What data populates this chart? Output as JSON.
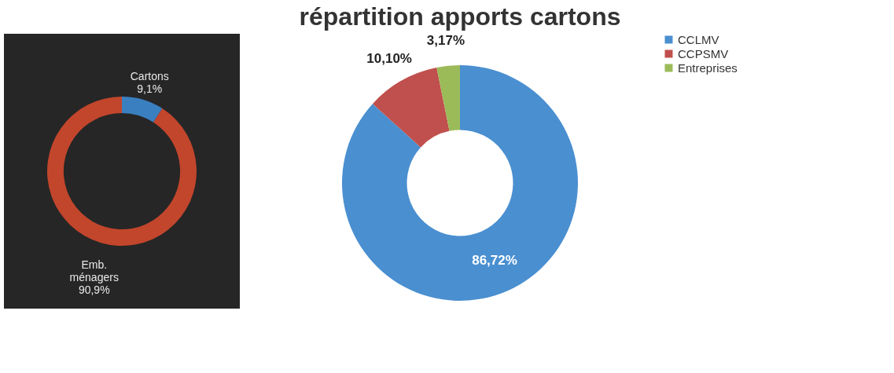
{
  "chart_data": [
    {
      "type": "donut",
      "categories": [
        "Cartons",
        "Emb. ménagers"
      ],
      "values": [
        9.1,
        90.9
      ],
      "colors": [
        "#3a7fc0",
        "#c2462c"
      ],
      "value_labels": [
        "9,1%",
        "90,9%"
      ],
      "legend": false
    },
    {
      "type": "donut",
      "title": "répartition apports cartons",
      "categories": [
        "CCLMV",
        "CCPSMV",
        "Entreprises"
      ],
      "values": [
        86.72,
        10.1,
        3.17
      ],
      "colors": [
        "#4a8fd0",
        "#c0504d",
        "#9bbb59"
      ],
      "value_labels": [
        "86,72%",
        "10,10%",
        "3,17%"
      ],
      "legend": "right"
    }
  ]
}
